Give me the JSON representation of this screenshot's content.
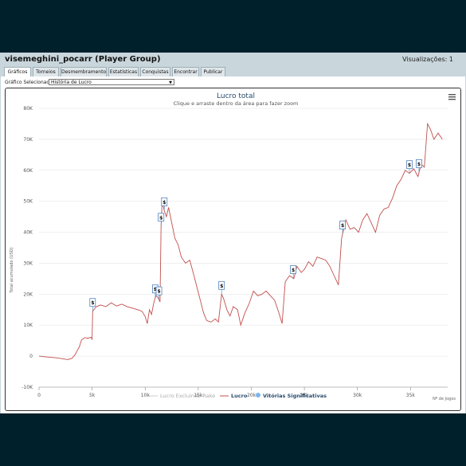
{
  "window": {
    "title": "visemeghini_pocarr (Player Group)",
    "views": "Visualizações: 1"
  },
  "tabs": [
    {
      "label": "Gráficos",
      "active": true
    },
    {
      "label": "Torneios",
      "active": false
    },
    {
      "label": "Desmembramento",
      "active": false
    },
    {
      "label": "Estatísticas",
      "active": false
    },
    {
      "label": "Conquistas",
      "active": false
    },
    {
      "label": "Encontrar",
      "active": false
    },
    {
      "label": "Publicar",
      "active": false
    }
  ],
  "selector": {
    "label": "Gráfico Selecionado:",
    "value": "História de Lucro"
  },
  "colors": {
    "line": "#c0504d",
    "rake_line": "#cccccc",
    "marker": "#4f81bd",
    "title": "#274b6d"
  },
  "chart_data": {
    "type": "line",
    "title": "Lucro total",
    "subtitle": "Clique e arraste dentro da área para fazer zoom",
    "ylabel": "Total acumulado (USD)",
    "xlabel": "Nº de Jogos",
    "xlim": [
      0,
      38500
    ],
    "ylim": [
      -10000,
      80000
    ],
    "x_ticks": [
      {
        "v": 0,
        "label": "0"
      },
      {
        "v": 5000,
        "label": "5k"
      },
      {
        "v": 10000,
        "label": "10k"
      },
      {
        "v": 15000,
        "label": "15k"
      },
      {
        "v": 20000,
        "label": "20k"
      },
      {
        "v": 25000,
        "label": "25k"
      },
      {
        "v": 30000,
        "label": "30k"
      },
      {
        "v": 35000,
        "label": "35k"
      }
    ],
    "y_ticks": [
      {
        "v": -10000,
        "label": "-10K"
      },
      {
        "v": 0,
        "label": "0"
      },
      {
        "v": 10000,
        "label": "10K"
      },
      {
        "v": 20000,
        "label": "20K"
      },
      {
        "v": 30000,
        "label": "30K"
      },
      {
        "v": 40000,
        "label": "40K"
      },
      {
        "v": 50000,
        "label": "50K"
      },
      {
        "v": 60000,
        "label": "60K"
      },
      {
        "v": 70000,
        "label": "70K"
      },
      {
        "v": 80000,
        "label": "80K"
      }
    ],
    "grid": true,
    "legend_position": "bottom",
    "legend": [
      "Lucro Excluindo Rake",
      "Lucro",
      "Vitórias Significativas"
    ],
    "series": [
      {
        "name": "Lucro",
        "points": [
          [
            0,
            0
          ],
          [
            600,
            -200
          ],
          [
            1200,
            -400
          ],
          [
            1800,
            -600
          ],
          [
            2300,
            -900
          ],
          [
            2700,
            -1100
          ],
          [
            3100,
            -700
          ],
          [
            3400,
            500
          ],
          [
            3600,
            1800
          ],
          [
            3800,
            3000
          ],
          [
            4000,
            5200
          ],
          [
            4300,
            6000
          ],
          [
            4600,
            5800
          ],
          [
            4900,
            6100
          ],
          [
            5000,
            5500
          ],
          [
            5050,
            14500
          ],
          [
            5400,
            16000
          ],
          [
            5800,
            16500
          ],
          [
            6300,
            16000
          ],
          [
            6800,
            17200
          ],
          [
            7300,
            16200
          ],
          [
            7800,
            16800
          ],
          [
            8300,
            16000
          ],
          [
            8800,
            15500
          ],
          [
            9300,
            15000
          ],
          [
            9700,
            14500
          ],
          [
            10000,
            12800
          ],
          [
            10200,
            10500
          ],
          [
            10400,
            15000
          ],
          [
            10600,
            13500
          ],
          [
            10800,
            17000
          ],
          [
            11000,
            19500
          ],
          [
            11200,
            19000
          ],
          [
            11400,
            17500
          ],
          [
            11500,
            42000
          ],
          [
            11600,
            50000
          ],
          [
            11800,
            47000
          ],
          [
            12000,
            45000
          ],
          [
            12200,
            48000
          ],
          [
            12500,
            43000
          ],
          [
            12800,
            38000
          ],
          [
            13100,
            36000
          ],
          [
            13400,
            32000
          ],
          [
            13800,
            30000
          ],
          [
            14200,
            31000
          ],
          [
            14600,
            26000
          ],
          [
            14900,
            22000
          ],
          [
            15200,
            18000
          ],
          [
            15500,
            14000
          ],
          [
            15800,
            11500
          ],
          [
            16200,
            11000
          ],
          [
            16600,
            12000
          ],
          [
            16900,
            11000
          ],
          [
            17200,
            20000
          ],
          [
            17400,
            18500
          ],
          [
            17700,
            15000
          ],
          [
            18000,
            13000
          ],
          [
            18300,
            16000
          ],
          [
            18700,
            15000
          ],
          [
            19000,
            10000
          ],
          [
            19400,
            14000
          ],
          [
            19800,
            17000
          ],
          [
            20200,
            21000
          ],
          [
            20600,
            19500
          ],
          [
            21000,
            20000
          ],
          [
            21400,
            21000
          ],
          [
            21800,
            19500
          ],
          [
            22200,
            18000
          ],
          [
            22600,
            14000
          ],
          [
            22900,
            10500
          ],
          [
            23200,
            24000
          ],
          [
            23600,
            26000
          ],
          [
            24000,
            25000
          ],
          [
            24300,
            29000
          ],
          [
            24700,
            27000
          ],
          [
            25000,
            28000
          ],
          [
            25400,
            30500
          ],
          [
            25800,
            29000
          ],
          [
            26200,
            32000
          ],
          [
            26600,
            31500
          ],
          [
            27000,
            31000
          ],
          [
            27400,
            29000
          ],
          [
            27800,
            26000
          ],
          [
            28200,
            23000
          ],
          [
            28500,
            38000
          ],
          [
            28900,
            44000
          ],
          [
            29300,
            41000
          ],
          [
            29700,
            41500
          ],
          [
            30100,
            40000
          ],
          [
            30500,
            44000
          ],
          [
            30900,
            46000
          ],
          [
            31300,
            43000
          ],
          [
            31700,
            40000
          ],
          [
            32100,
            45500
          ],
          [
            32500,
            47500
          ],
          [
            32900,
            48000
          ],
          [
            33300,
            51000
          ],
          [
            33700,
            55000
          ],
          [
            34100,
            57000
          ],
          [
            34500,
            60000
          ],
          [
            34900,
            59000
          ],
          [
            35300,
            60500
          ],
          [
            35700,
            58000
          ],
          [
            36000,
            62000
          ],
          [
            36300,
            61000
          ],
          [
            36600,
            75000
          ],
          [
            36900,
            73000
          ],
          [
            37200,
            70000
          ],
          [
            37600,
            72000
          ],
          [
            38000,
            70000
          ]
        ]
      }
    ],
    "significant_wins": [
      5050,
      10950,
      11300,
      11500,
      11800,
      17200,
      23950,
      28600,
      34900,
      35800
    ]
  }
}
